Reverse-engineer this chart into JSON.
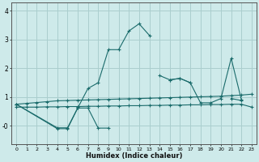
{
  "title": "",
  "xlabel": "Humidex (Indice chaleur)",
  "background_color": "#ceeaea",
  "grid_color": "#aacece",
  "line_color": "#1a6b6b",
  "xlim": [
    -0.5,
    23.5
  ],
  "ylim": [
    -0.65,
    4.3
  ],
  "yticks": [
    0,
    1,
    2,
    3,
    4
  ],
  "ytick_labels": [
    "-0",
    "1",
    "2",
    "3",
    "4"
  ],
  "xticks": [
    0,
    1,
    2,
    3,
    4,
    5,
    6,
    7,
    8,
    9,
    10,
    11,
    12,
    13,
    14,
    15,
    16,
    17,
    18,
    19,
    20,
    21,
    22,
    23
  ],
  "line1": {
    "x": [
      0,
      1,
      2,
      3,
      4,
      5,
      6,
      7,
      8,
      9,
      10,
      11,
      12,
      13,
      14,
      15,
      16,
      17,
      18,
      19,
      20,
      21,
      22,
      23
    ],
    "y": [
      0.75,
      0.78,
      0.81,
      0.84,
      0.87,
      0.88,
      0.89,
      0.9,
      0.91,
      0.92,
      0.93,
      0.94,
      0.95,
      0.96,
      0.97,
      0.98,
      0.99,
      1.0,
      1.01,
      1.02,
      1.03,
      1.05,
      1.07,
      1.1
    ]
  },
  "line2": {
    "x": [
      0,
      1,
      2,
      3,
      4,
      5,
      6,
      7,
      8,
      9,
      10,
      11,
      12,
      13,
      14,
      15,
      16,
      17,
      18,
      19,
      20,
      21,
      22,
      23
    ],
    "y": [
      0.65,
      0.65,
      0.65,
      0.66,
      0.66,
      0.67,
      0.67,
      0.68,
      0.68,
      0.69,
      0.69,
      0.7,
      0.7,
      0.71,
      0.71,
      0.72,
      0.72,
      0.73,
      0.73,
      0.74,
      0.74,
      0.75,
      0.75,
      0.65
    ]
  },
  "line3_segments": [
    {
      "x": [
        0,
        1,
        2,
        3,
        4,
        5,
        6,
        7,
        8,
        9,
        10,
        11,
        12,
        13,
        14
      ],
      "y": [
        0.75,
        null,
        null,
        null,
        -0.07,
        -0.07,
        0.62,
        1.3,
        1.5,
        2.65,
        2.65,
        3.3,
        3.55,
        3.15,
        null
      ]
    },
    {
      "x": [
        15,
        16,
        17,
        18
      ],
      "y": [
        1.6,
        1.65,
        1.5,
        null
      ]
    },
    {
      "x": [
        20,
        21,
        22
      ],
      "y": [
        null,
        0.95,
        0.88
      ]
    }
  ],
  "line4_segments": [
    {
      "x": [
        0,
        1,
        2,
        3,
        4,
        5,
        6,
        7,
        8,
        9
      ],
      "y": [
        0.75,
        null,
        null,
        null,
        -0.1,
        -0.1,
        0.62,
        0.62,
        -0.08,
        -0.08
      ]
    },
    {
      "x": [
        14,
        15,
        16,
        17,
        18,
        19,
        20,
        21,
        22
      ],
      "y": [
        1.75,
        1.6,
        1.65,
        1.5,
        0.8,
        0.8,
        0.95,
        2.35,
        0.9
      ]
    }
  ]
}
